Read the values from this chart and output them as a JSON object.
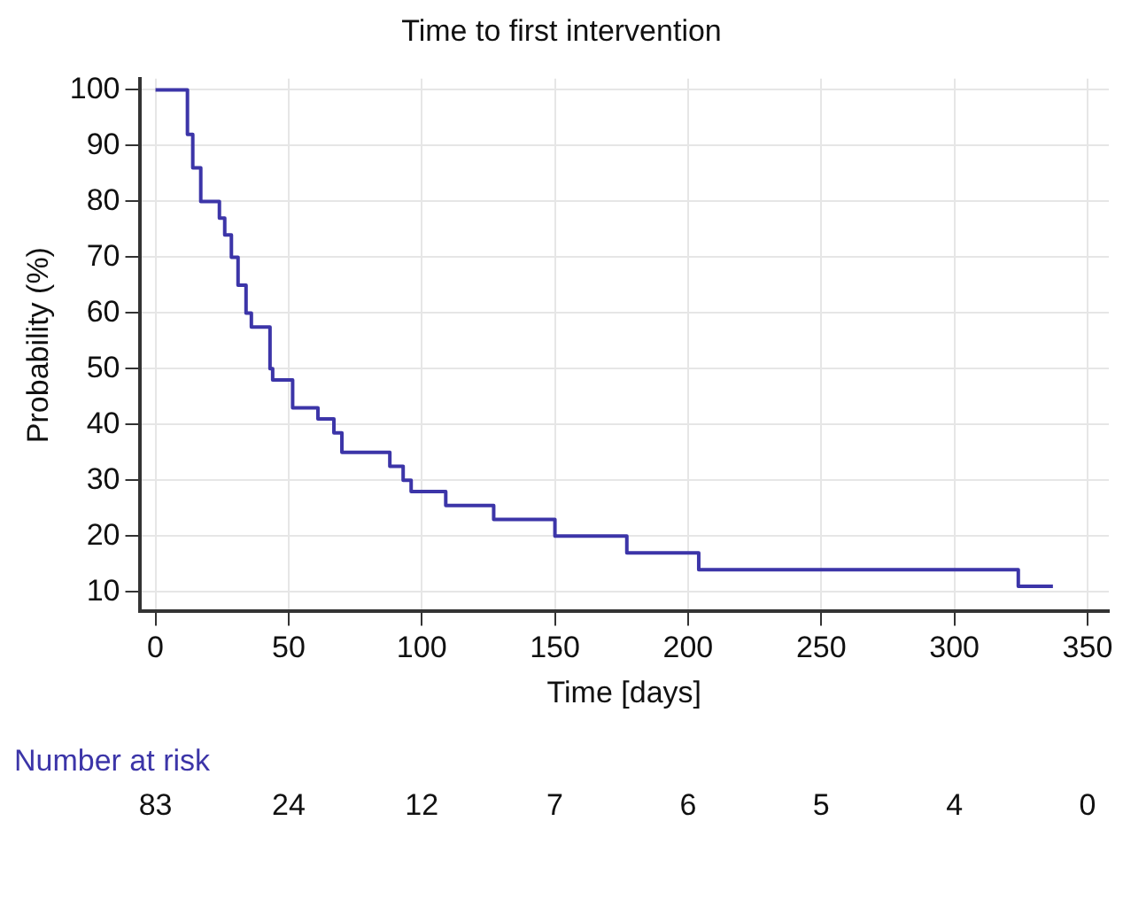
{
  "chart_data": {
    "type": "step",
    "title": "Time to first intervention",
    "xlabel": "Time [days]",
    "ylabel": "Probability (%)",
    "x": [
      0,
      10,
      12,
      14,
      17,
      23,
      24,
      26,
      28.5,
      31,
      34,
      36,
      42,
      43,
      44,
      51.5,
      61,
      67,
      70,
      88,
      93,
      96,
      109,
      127,
      150,
      177,
      204,
      324,
      337
    ],
    "series": [
      {
        "color": "#3c35a8",
        "values": [
          100,
          100,
          92,
          86,
          80,
          80,
          77,
          74,
          70,
          65,
          60,
          57.5,
          57.5,
          50,
          48,
          43,
          41,
          38.5,
          35,
          32.5,
          30,
          28,
          25.5,
          23,
          20,
          17,
          14,
          11,
          11
        ]
      }
    ],
    "xlim": [
      -6,
      358
    ],
    "xticks": [
      0,
      50,
      100,
      150,
      200,
      250,
      300,
      350
    ],
    "ylim": [
      6.5,
      102
    ],
    "yticks": [
      10,
      20,
      30,
      40,
      50,
      60,
      70,
      80,
      90,
      100
    ],
    "grid": true,
    "legend": false,
    "marker": "none",
    "line_style": "solid",
    "annotations": [
      "Number at risk",
      "83",
      "24",
      "12",
      "7",
      "6",
      "5",
      "4",
      "0"
    ]
  }
}
